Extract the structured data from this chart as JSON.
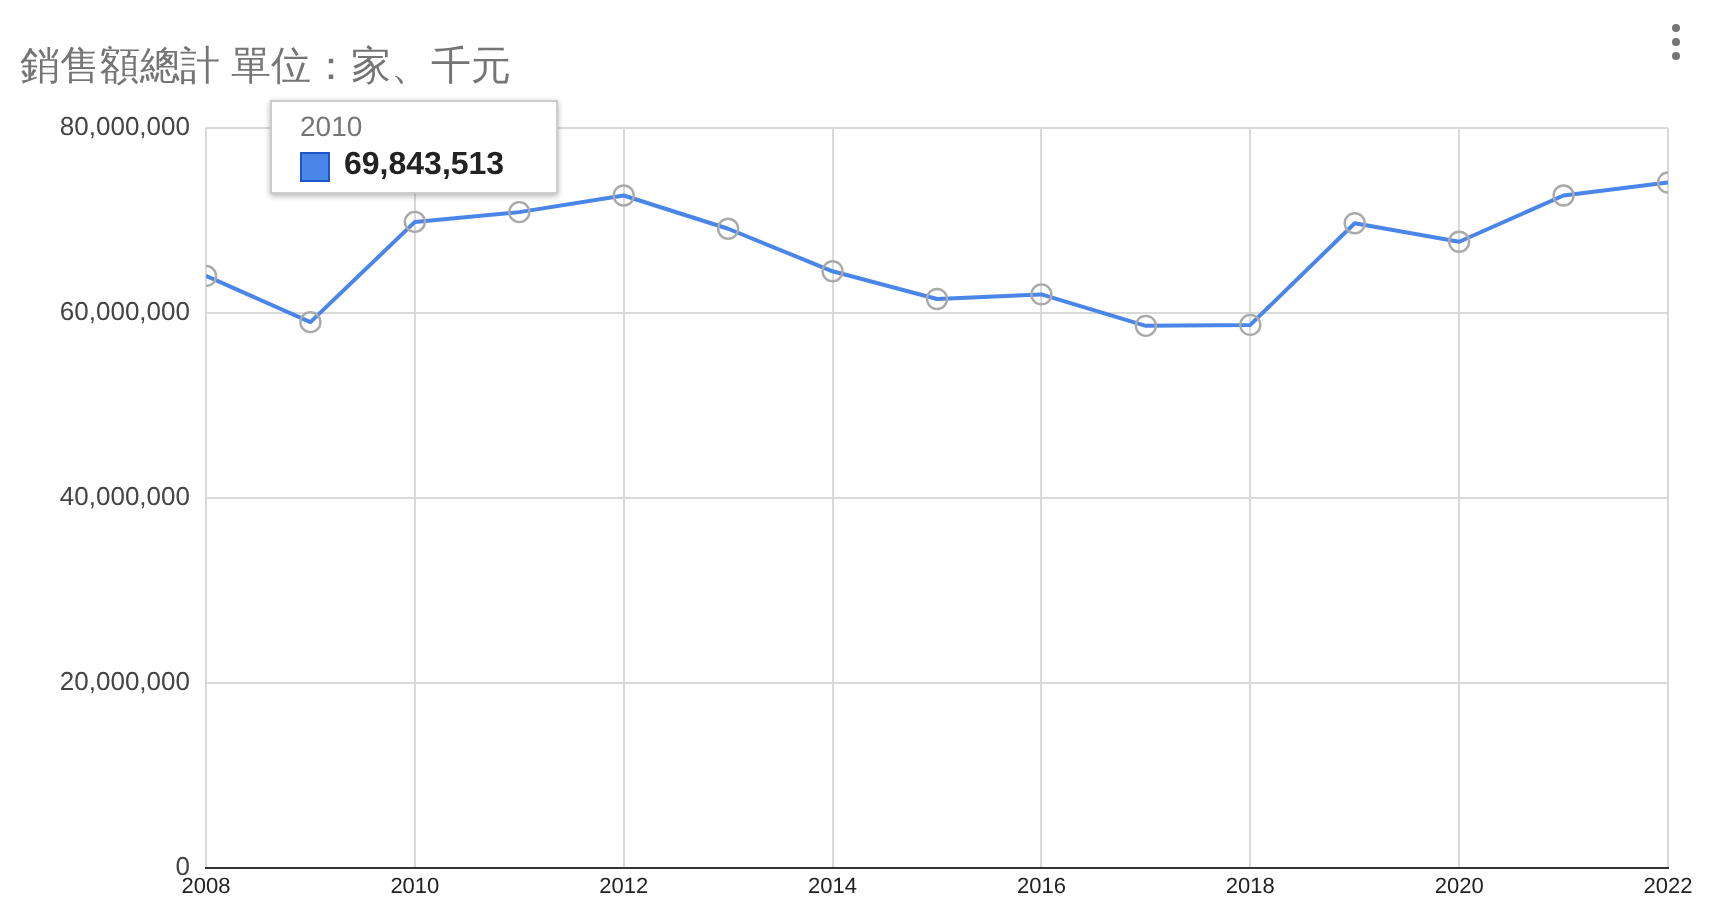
{
  "chart_data": {
    "type": "line",
    "title": "銷售額總計 單位：家、千元",
    "x": [
      2008,
      2009,
      2010,
      2011,
      2012,
      2013,
      2014,
      2015,
      2016,
      2017,
      2018,
      2019,
      2020,
      2021,
      2022
    ],
    "series": [
      {
        "color": "#4a86e8",
        "values": [
          64000000,
          59000000,
          69843513,
          70900000,
          72700000,
          69100000,
          64500000,
          61500000,
          62000000,
          58600000,
          58700000,
          69700000,
          67700000,
          72700000,
          74100000
        ]
      }
    ],
    "xlim": [
      2008,
      2022
    ],
    "xticks": [
      2008,
      2010,
      2012,
      2014,
      2016,
      2018,
      2020,
      2022
    ],
    "ylim": [
      0,
      80000000
    ],
    "yticks": [
      0,
      {
        "value": 20000000,
        "label": "20,000,000"
      },
      {
        "value": 40000000,
        "label": "40,000,000"
      },
      {
        "value": 60000000,
        "label": "60,000,000"
      },
      {
        "value": 80000000,
        "label": "80,000,000"
      }
    ],
    "grid": true,
    "legend": false,
    "marker": "circle",
    "line_style": "solid",
    "annotations": [
      "2010",
      "69,843,513"
    ]
  }
}
